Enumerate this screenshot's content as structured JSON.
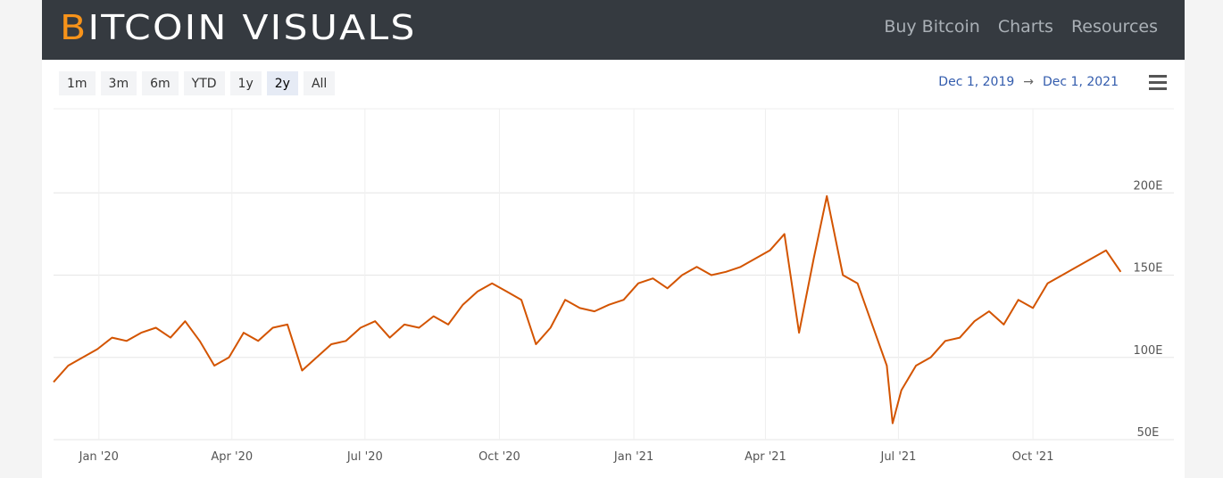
{
  "header": {
    "logo": "BITCOIN VISUALS",
    "nav": [
      "Buy Bitcoin",
      "Charts",
      "Resources"
    ]
  },
  "toolbar": {
    "range_buttons": [
      "1m",
      "3m",
      "6m",
      "YTD",
      "1y",
      "2y",
      "All"
    ],
    "selected": "2y",
    "start_date": "Dec 1, 2019",
    "range_separator": "→",
    "end_date": "Dec 1, 2021"
  },
  "chart_data": {
    "type": "line",
    "color": "#d35400",
    "grid": true,
    "x": [
      "2019-12-01",
      "2019-12-11",
      "2019-12-21",
      "2019-12-31",
      "2020-01-10",
      "2020-01-20",
      "2020-01-30",
      "2020-02-09",
      "2020-02-19",
      "2020-02-29",
      "2020-03-10",
      "2020-03-20",
      "2020-03-30",
      "2020-04-09",
      "2020-04-19",
      "2020-04-29",
      "2020-05-09",
      "2020-05-19",
      "2020-05-29",
      "2020-06-08",
      "2020-06-18",
      "2020-06-28",
      "2020-07-08",
      "2020-07-18",
      "2020-07-28",
      "2020-08-07",
      "2020-08-17",
      "2020-08-27",
      "2020-09-06",
      "2020-09-16",
      "2020-09-26",
      "2020-10-06",
      "2020-10-16",
      "2020-10-26",
      "2020-11-05",
      "2020-11-15",
      "2020-11-25",
      "2020-12-05",
      "2020-12-15",
      "2020-12-25",
      "2021-01-04",
      "2021-01-14",
      "2021-01-24",
      "2021-02-03",
      "2021-02-13",
      "2021-02-23",
      "2021-03-05",
      "2021-03-15",
      "2021-03-25",
      "2021-04-04",
      "2021-04-14",
      "2021-04-24",
      "2021-05-04",
      "2021-05-13",
      "2021-05-24",
      "2021-06-03",
      "2021-06-13",
      "2021-06-23",
      "2021-06-27",
      "2021-07-03",
      "2021-07-13",
      "2021-07-23",
      "2021-08-02",
      "2021-08-12",
      "2021-08-22",
      "2021-09-01",
      "2021-09-11",
      "2021-09-21",
      "2021-10-01",
      "2021-10-11",
      "2021-10-21",
      "2021-10-31",
      "2021-11-10",
      "2021-11-20",
      "2021-11-30"
    ],
    "values": [
      85,
      95,
      100,
      105,
      112,
      110,
      115,
      118,
      112,
      122,
      110,
      95,
      100,
      115,
      110,
      118,
      120,
      92,
      100,
      108,
      110,
      118,
      122,
      112,
      120,
      118,
      125,
      120,
      132,
      140,
      145,
      140,
      135,
      108,
      118,
      135,
      130,
      128,
      132,
      135,
      145,
      148,
      142,
      150,
      155,
      150,
      152,
      155,
      160,
      165,
      175,
      115,
      160,
      198,
      150,
      145,
      120,
      95,
      60,
      80,
      95,
      100,
      110,
      112,
      122,
      128,
      120,
      135,
      130,
      145,
      150,
      155,
      160,
      165,
      152
    ],
    "xlim": [
      "2019-12-01",
      "2021-12-01"
    ],
    "xticks": [
      {
        "value": "2020-01-01",
        "label": "Jan '20"
      },
      {
        "value": "2020-04-01",
        "label": "Apr '20"
      },
      {
        "value": "2020-07-01",
        "label": "Jul '20"
      },
      {
        "value": "2020-10-01",
        "label": "Oct '20"
      },
      {
        "value": "2021-01-01",
        "label": "Jan '21"
      },
      {
        "value": "2021-04-01",
        "label": "Apr '21"
      },
      {
        "value": "2021-07-01",
        "label": "Jul '21"
      },
      {
        "value": "2021-10-01",
        "label": "Oct '21"
      }
    ],
    "ylim": [
      50,
      250
    ],
    "yticks": [
      {
        "value": 50,
        "label": "50E"
      },
      {
        "value": 100,
        "label": "100E"
      },
      {
        "value": 150,
        "label": "150E"
      },
      {
        "value": 200,
        "label": "200E"
      }
    ]
  }
}
